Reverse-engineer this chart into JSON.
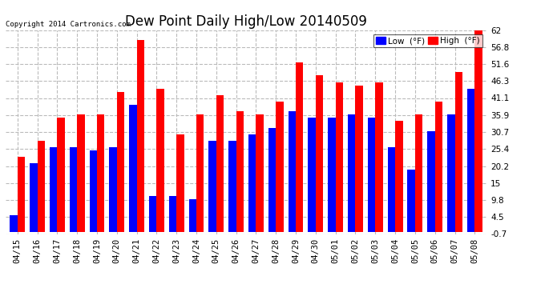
{
  "title": "Dew Point Daily High/Low 20140509",
  "copyright": "Copyright 2014 Cartronics.com",
  "dates": [
    "04/15",
    "04/16",
    "04/17",
    "04/18",
    "04/19",
    "04/20",
    "04/21",
    "04/22",
    "04/23",
    "04/24",
    "04/25",
    "04/26",
    "04/27",
    "04/28",
    "04/29",
    "04/30",
    "05/01",
    "05/02",
    "05/03",
    "05/04",
    "05/05",
    "05/06",
    "05/07",
    "05/08"
  ],
  "low_values": [
    5,
    21,
    26,
    26,
    25,
    26,
    39,
    11,
    11,
    10,
    28,
    28,
    30,
    32,
    37,
    35,
    35,
    36,
    35,
    26,
    19,
    31,
    36,
    44
  ],
  "high_values": [
    23,
    28,
    35,
    36,
    36,
    43,
    59,
    44,
    30,
    36,
    42,
    37,
    36,
    40,
    52,
    48,
    46,
    45,
    46,
    34,
    36,
    40,
    49,
    62
  ],
  "low_color": "#0000ff",
  "high_color": "#ff0000",
  "background_color": "#ffffff",
  "ylim": [
    -0.7,
    62.0
  ],
  "yticks": [
    -0.7,
    4.5,
    9.8,
    15.0,
    20.2,
    25.4,
    30.7,
    35.9,
    41.1,
    46.3,
    51.6,
    56.8,
    62.0
  ],
  "grid_color": "#bbbbbb",
  "title_fontsize": 12,
  "tick_fontsize": 7.5,
  "bar_width": 0.38,
  "legend_fontsize": 7.5
}
